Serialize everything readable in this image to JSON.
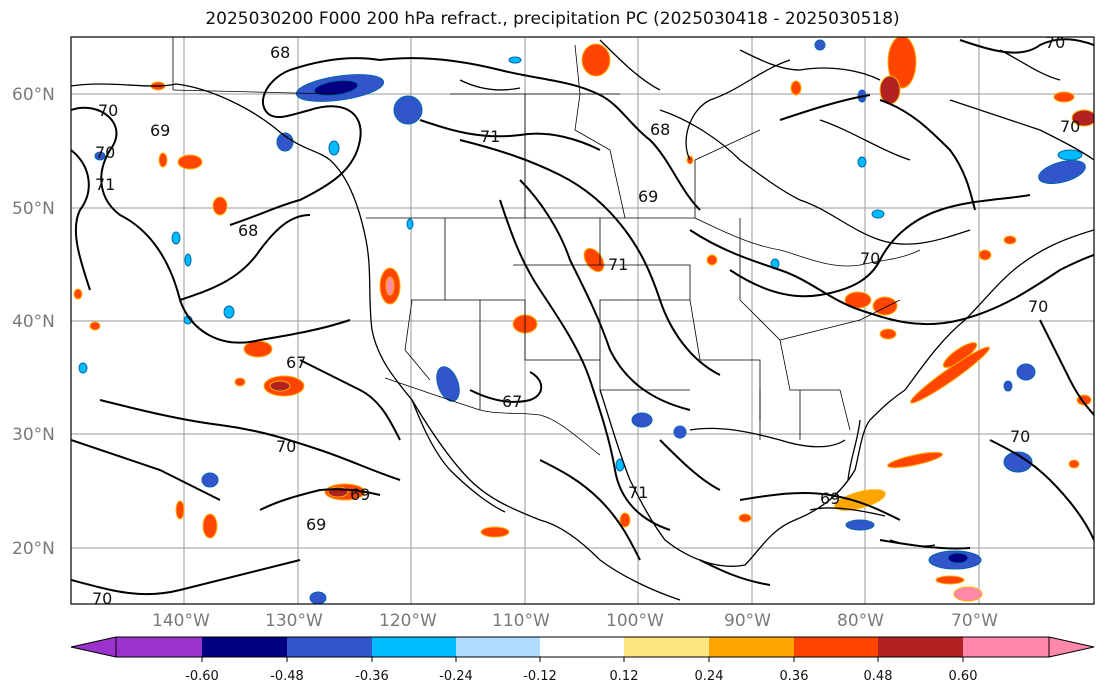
{
  "title": "2025030200 F000 200 hPa refract., precipitation PC (2025030418 - 2025030518)",
  "map": {
    "lat_labels": [
      "60°N",
      "50°N",
      "40°N",
      "30°N",
      "20°N"
    ],
    "lon_labels": [
      "140°W",
      "130°W",
      "120°W",
      "110°W",
      "100°W",
      "90°W",
      "80°W",
      "70°W"
    ],
    "grid_color": "#9a9a9a"
  },
  "contours": {
    "labels": [
      "68",
      "70",
      "69",
      "70",
      "71",
      "71",
      "68",
      "69",
      "70",
      "71",
      "68",
      "67",
      "67",
      "70",
      "69",
      "69",
      "71",
      "69",
      "70",
      "70",
      "70",
      "70",
      "70"
    ]
  },
  "colorbar": {
    "colors": [
      "#9933cc",
      "#000080",
      "#3355cc",
      "#00bbff",
      "#b0dcff",
      "#ffffff",
      "#ffe680",
      "#ffa500",
      "#ff4500",
      "#b22222",
      "#ff88aa"
    ],
    "tick_labels": [
      "-0.60",
      "-0.48",
      "-0.36",
      "-0.24",
      "-0.12",
      "0.12",
      "0.24",
      "0.36",
      "0.48",
      "0.60"
    ]
  }
}
